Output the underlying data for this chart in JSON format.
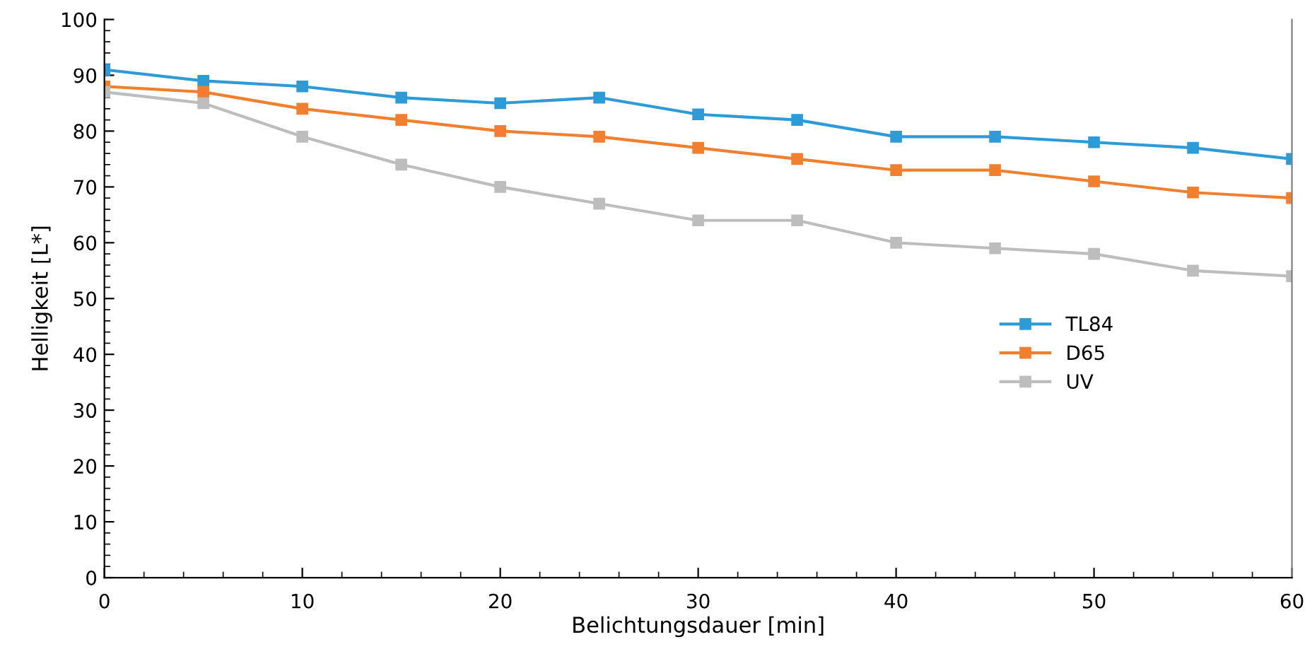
{
  "chart_data": {
    "type": "line",
    "xlabel": "Belichtungsdauer [min]",
    "ylabel": "Helligkeit [L*]",
    "x": [
      0,
      5,
      10,
      15,
      20,
      25,
      30,
      35,
      40,
      45,
      50,
      55,
      60
    ],
    "series": [
      {
        "name": "TL84",
        "color": "#2e9bd6",
        "values": [
          91,
          89,
          88,
          86,
          85,
          86,
          83,
          82,
          79,
          79,
          78,
          77,
          75
        ]
      },
      {
        "name": "D65",
        "color": "#f08030",
        "values": [
          88,
          87,
          84,
          82,
          80,
          79,
          77,
          75,
          73,
          73,
          71,
          69,
          68
        ]
      },
      {
        "name": "UV",
        "color": "#bdbdbd",
        "values": [
          87,
          85,
          79,
          74,
          70,
          67,
          64,
          64,
          60,
          59,
          58,
          55,
          54
        ]
      }
    ],
    "xlim": [
      0,
      60
    ],
    "xticks": [
      0,
      10,
      20,
      30,
      40,
      50,
      60
    ],
    "ylim": [
      0,
      100
    ],
    "yticks": [
      0,
      10,
      20,
      30,
      40,
      50,
      60,
      70,
      80,
      90,
      100
    ],
    "marker": "square",
    "line_style": "solid",
    "grid": false,
    "legend": "right"
  }
}
